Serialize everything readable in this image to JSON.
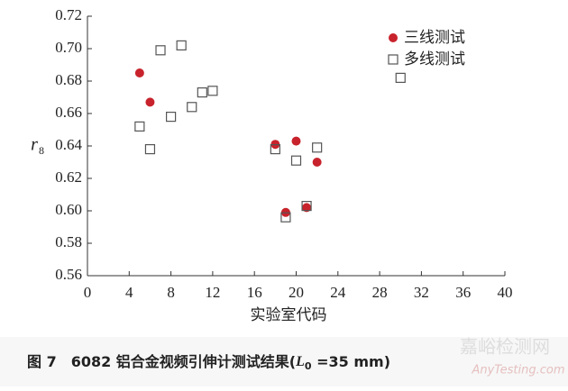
{
  "chart_data": {
    "type": "scatter",
    "x_label": "实验室代码",
    "y_label": "r",
    "y_label_sub": "8",
    "xlim": [
      0,
      40
    ],
    "xticks": [
      0,
      4,
      8,
      12,
      16,
      20,
      24,
      28,
      32,
      36,
      40
    ],
    "ylim": [
      0.56,
      0.72
    ],
    "yticks": [
      0.56,
      0.58,
      {
        "value": 0.6,
        "label": "0.60"
      },
      0.62,
      0.64,
      0.66,
      0.68,
      {
        "value": 0.7,
        "label": "0.70"
      },
      0.72
    ],
    "legend": "upper right",
    "series": [
      {
        "name": "三线测试",
        "color": "#c8232c",
        "marker": "circle",
        "x": [
          5,
          6,
          18,
          20,
          22,
          19,
          21
        ],
        "values": [
          0.685,
          0.667,
          0.641,
          0.643,
          0.63,
          0.599,
          0.602
        ]
      },
      {
        "name": "多线测试",
        "color": "#555555",
        "marker": "square",
        "x": [
          5,
          6,
          7,
          8,
          9,
          10,
          11,
          12,
          18,
          19,
          20,
          21,
          22,
          30
        ],
        "values": [
          0.652,
          0.638,
          0.699,
          0.658,
          0.702,
          0.664,
          0.673,
          0.674,
          0.638,
          0.596,
          0.631,
          0.603,
          0.639,
          0.682
        ]
      }
    ]
  },
  "caption": {
    "prefix": "图 7　6082 铝合金视频引伸计测试结果(",
    "var": "L",
    "sub": "0",
    "suffix": " =35 mm)"
  },
  "watermark": {
    "main": "嘉峪检测网",
    "sub": "AnyTesting.com"
  }
}
